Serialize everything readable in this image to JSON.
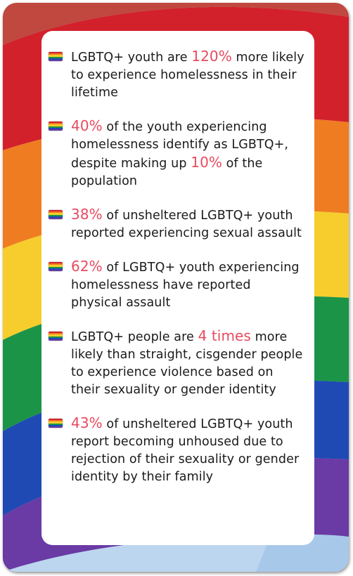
{
  "colors": {
    "highlight": "#e84a5f",
    "text": "#1a1a1a",
    "sky": "#bcd6ef",
    "flag_stripes": [
      "#d3212c",
      "#f07c22",
      "#f6cd2c",
      "#1c9448",
      "#1f4ab4",
      "#6a3aa5"
    ]
  },
  "icon": "rainbow-flag-icon",
  "facts": [
    {
      "parts": [
        {
          "t": "LGBTQ+ youth are ",
          "h": false
        },
        {
          "t": "120%",
          "h": true
        },
        {
          "t": " more likely to experience homelessness in their lifetime",
          "h": false
        }
      ]
    },
    {
      "parts": [
        {
          "t": "40%",
          "h": true
        },
        {
          "t": " of the youth experiencing homelessness identify as LGBTQ+, despite making up ",
          "h": false
        },
        {
          "t": "10%",
          "h": true
        },
        {
          "t": " of the population",
          "h": false
        }
      ]
    },
    {
      "parts": [
        {
          "t": "38%",
          "h": true
        },
        {
          "t": " of unsheltered LGBTQ+ youth reported experiencing sexual assault",
          "h": false
        }
      ]
    },
    {
      "parts": [
        {
          "t": "62%",
          "h": true
        },
        {
          "t": " of LGBTQ+ youth experiencing homelessness have reported physical assault",
          "h": false
        }
      ]
    },
    {
      "parts": [
        {
          "t": "LGBTQ+ people are ",
          "h": false
        },
        {
          "t": "4 times",
          "h": true
        },
        {
          "t": " more likely than straight, cisgender people to experience violence based on their sexuality or gender identity",
          "h": false
        }
      ]
    },
    {
      "parts": [
        {
          "t": "43%",
          "h": true
        },
        {
          "t": " of unsheltered LGBTQ+ youth report becoming unhoused due to rejection of their sexuality or gender identity by their family",
          "h": false
        }
      ]
    }
  ]
}
